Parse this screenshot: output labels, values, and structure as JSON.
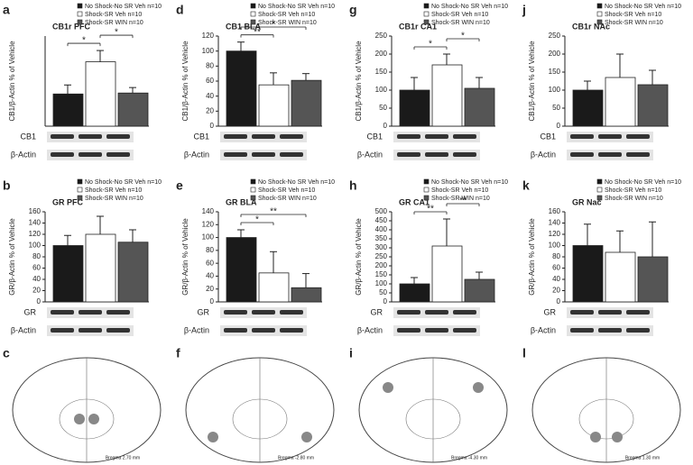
{
  "chart_data": [
    {
      "type": "bar",
      "panel": "a",
      "title": "CB1r PFC",
      "ylabel": "CB1/β-Actin % of Vehicle",
      "ylim": [
        0,
        280
      ],
      "yticks": [],
      "series": [
        {
          "name": "No Shock-No SR Veh n=10",
          "color": "#1a1a1a",
          "values": [
            100
          ],
          "errors": [
            28
          ]
        },
        {
          "name": "Shock-SR Veh n=10",
          "color": "#ffffff",
          "values": [
            200
          ],
          "errors": [
            35
          ]
        },
        {
          "name": "Shock-SR WIN n=10",
          "color": "#555555",
          "values": [
            103
          ],
          "errors": [
            17
          ]
        }
      ],
      "significance": [
        {
          "label": "*",
          "between": [
            0,
            1
          ]
        },
        {
          "label": "*",
          "between": [
            1,
            2
          ]
        }
      ],
      "blot_labels": [
        "CB1",
        "β-Actin"
      ]
    },
    {
      "type": "bar",
      "panel": "d",
      "title": "CB1 BLA",
      "ylabel": "CB1/β-Actin % of Vehicle",
      "ylim": [
        0,
        120
      ],
      "yticks": [
        0,
        20,
        40,
        60,
        80,
        100,
        120
      ],
      "series": [
        {
          "name": "No Shock-No SR Veh n=10",
          "color": "#1a1a1a",
          "values": [
            100
          ],
          "errors": [
            12
          ]
        },
        {
          "name": "Shock-SR Veh n=10",
          "color": "#ffffff",
          "values": [
            55
          ],
          "errors": [
            16
          ]
        },
        {
          "name": "Shock-SR WIN n=10",
          "color": "#555555",
          "values": [
            61
          ],
          "errors": [
            9
          ]
        }
      ],
      "significance": [
        {
          "label": "**",
          "between": [
            0,
            1
          ]
        },
        {
          "label": "*",
          "between": [
            0,
            2
          ]
        }
      ],
      "blot_labels": [
        "CB1",
        "β-Actin"
      ]
    },
    {
      "type": "bar",
      "panel": "g",
      "title": "CB1r CA1",
      "ylabel": "CB1/β-Actin % of Vehicle",
      "ylim": [
        0,
        250
      ],
      "yticks": [
        0,
        50,
        100,
        150,
        200,
        250
      ],
      "series": [
        {
          "name": "No Shock-No SR Veh n=10",
          "color": "#1a1a1a",
          "values": [
            100
          ],
          "errors": [
            35
          ]
        },
        {
          "name": "Shock-SR Veh n=10",
          "color": "#ffffff",
          "values": [
            170
          ],
          "errors": [
            30
          ]
        },
        {
          "name": "Shock-SR WIN n=10",
          "color": "#555555",
          "values": [
            105
          ],
          "errors": [
            30
          ]
        }
      ],
      "significance": [
        {
          "label": "*",
          "between": [
            0,
            1
          ]
        },
        {
          "label": "*",
          "between": [
            1,
            2
          ]
        }
      ],
      "blot_labels": [
        "CB1",
        "β-Actin"
      ]
    },
    {
      "type": "bar",
      "panel": "j",
      "title": "CB1r NAc",
      "ylabel": "CB1/β-Actin % of Vehicle",
      "ylim": [
        0,
        250
      ],
      "yticks": [
        0,
        50,
        100,
        150,
        200,
        250
      ],
      "series": [
        {
          "name": "No Shock-No SR Veh n=10",
          "color": "#1a1a1a",
          "values": [
            100
          ],
          "errors": [
            25
          ]
        },
        {
          "name": "Shock-SR Veh n=10",
          "color": "#ffffff",
          "values": [
            135
          ],
          "errors": [
            65
          ]
        },
        {
          "name": "Shock-SR WIN n=10",
          "color": "#555555",
          "values": [
            115
          ],
          "errors": [
            40
          ]
        }
      ],
      "significance": [],
      "blot_labels": [
        "CB1",
        "β-Actin"
      ]
    },
    {
      "type": "bar",
      "panel": "b",
      "title": "GR PFC",
      "ylabel": "GR/β-Actin % of Vehicle",
      "ylim": [
        0,
        160
      ],
      "yticks": [
        0,
        20,
        40,
        60,
        80,
        100,
        120,
        140,
        160
      ],
      "series": [
        {
          "name": "No Shock-No SR Veh n=10",
          "color": "#1a1a1a",
          "values": [
            100
          ],
          "errors": [
            18
          ]
        },
        {
          "name": "Shock-SR Veh n=10",
          "color": "#ffffff",
          "values": [
            120
          ],
          "errors": [
            32
          ]
        },
        {
          "name": "Shock-SR WIN n=10",
          "color": "#555555",
          "values": [
            106
          ],
          "errors": [
            22
          ]
        }
      ],
      "significance": [],
      "blot_labels": [
        "GR",
        "β-Actin"
      ]
    },
    {
      "type": "bar",
      "panel": "e",
      "title": "GR BLA",
      "ylabel": "GR/β-Actin % of Vehicle",
      "ylim": [
        0,
        140
      ],
      "yticks": [
        0,
        20,
        40,
        60,
        80,
        100,
        120,
        140
      ],
      "series": [
        {
          "name": "No Shock-No SR Veh n=10",
          "color": "#1a1a1a",
          "values": [
            100
          ],
          "errors": [
            12
          ]
        },
        {
          "name": "Shock-SR Veh n=10",
          "color": "#ffffff",
          "values": [
            45
          ],
          "errors": [
            33
          ]
        },
        {
          "name": "Shock-SR WIN n=10",
          "color": "#555555",
          "values": [
            22
          ],
          "errors": [
            22
          ]
        }
      ],
      "significance": [
        {
          "label": "*",
          "between": [
            0,
            1
          ]
        },
        {
          "label": "**",
          "between": [
            0,
            2
          ]
        }
      ],
      "blot_labels": [
        "GR",
        "β-Actin"
      ]
    },
    {
      "type": "bar",
      "panel": "h",
      "title": "GR CA1",
      "ylabel": "GR/β-Actin % of Vehicle",
      "ylim": [
        0,
        500
      ],
      "yticks": [
        0,
        50,
        100,
        150,
        200,
        250,
        300,
        350,
        400,
        450,
        500
      ],
      "series": [
        {
          "name": "No Shock-No SR Veh n=10",
          "color": "#1a1a1a",
          "values": [
            100
          ],
          "errors": [
            35
          ]
        },
        {
          "name": "Shock-SR Veh n=10",
          "color": "#ffffff",
          "values": [
            310
          ],
          "errors": [
            150
          ]
        },
        {
          "name": "Shock-SR WIN n=10",
          "color": "#555555",
          "values": [
            125
          ],
          "errors": [
            40
          ]
        }
      ],
      "significance": [
        {
          "label": "**",
          "between": [
            0,
            1
          ]
        },
        {
          "label": "**",
          "between": [
            1,
            2
          ]
        }
      ],
      "blot_labels": [
        "GR",
        "β-Actin"
      ]
    },
    {
      "type": "bar",
      "panel": "k",
      "title": "GR Nac",
      "ylabel": "GR/β-Actin % of Vehicle",
      "ylim": [
        0,
        160
      ],
      "yticks": [
        0,
        20,
        40,
        60,
        80,
        100,
        120,
        140,
        160
      ],
      "series": [
        {
          "name": "No Shock-No SR Veh n=10",
          "color": "#1a1a1a",
          "values": [
            100
          ],
          "errors": [
            38
          ]
        },
        {
          "name": "Shock-SR Veh n=10",
          "color": "#ffffff",
          "values": [
            88
          ],
          "errors": [
            38
          ]
        },
        {
          "name": "Shock-SR WIN n=10",
          "color": "#555555",
          "values": [
            80
          ],
          "errors": [
            62
          ]
        }
      ],
      "significance": [],
      "blot_labels": [
        "GR",
        "β-Actin"
      ]
    }
  ],
  "brain_panels": [
    {
      "panel": "c",
      "label": "Bregma 2.70 mm"
    },
    {
      "panel": "f",
      "label": "Bregma -2.80 mm"
    },
    {
      "panel": "i",
      "label": "Bregma -4.30 mm"
    },
    {
      "panel": "l",
      "label": "Bregma 1.30 mm"
    }
  ]
}
